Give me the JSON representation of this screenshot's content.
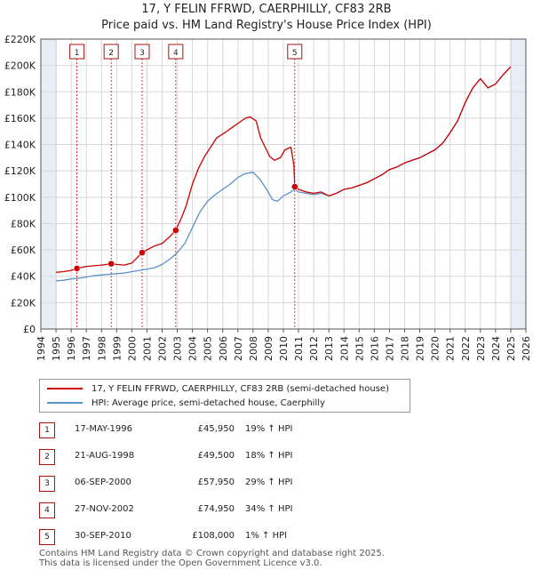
{
  "title_line1": "17, Y FELIN FFRWD, CAERPHILLY, CF83 2RB",
  "title_line2": "Price paid vs. HM Land Registry's House Price Index (HPI)",
  "colors": {
    "property": "#cc0000",
    "hpi": "#5b8fc9",
    "shade": "#e8eef8",
    "marker": "#cc0000"
  },
  "legend": {
    "property": "17, Y FELIN FFRWD, CAERPHILLY, CF83 2RB (semi-detached house)",
    "hpi": "HPI: Average price, semi-detached house, Caerphilly"
  },
  "sales": [
    {
      "num": "1",
      "date": "17-MAY-1996",
      "price": "£45,950",
      "hpi": "19% ↑ HPI"
    },
    {
      "num": "2",
      "date": "21-AUG-1998",
      "price": "£49,500",
      "hpi": "18% ↑ HPI"
    },
    {
      "num": "3",
      "date": "06-SEP-2000",
      "price": "£57,950",
      "hpi": "29% ↑ HPI"
    },
    {
      "num": "4",
      "date": "27-NOV-2002",
      "price": "£74,950",
      "hpi": "34% ↑ HPI"
    },
    {
      "num": "5",
      "date": "30-SEP-2010",
      "price": "£108,000",
      "hpi": "1% ↑ HPI"
    }
  ],
  "footer_line1": "Contains HM Land Registry data © Crown copyright and database right 2025.",
  "footer_line2": "This data is licensed under the Open Government Licence v3.0.",
  "chart_data": {
    "type": "line",
    "title": "17, Y FELIN FFRWD, CAERPHILLY, CF83 2RB",
    "subtitle": "Price paid vs. HM Land Registry's House Price Index (HPI)",
    "xlabel": "",
    "ylabel": "",
    "xlim": [
      1994,
      2026
    ],
    "ylim": [
      0,
      220000
    ],
    "grid": true,
    "legend_position": "bottom",
    "x_ticks": [
      1994,
      1995,
      1996,
      1997,
      1998,
      1999,
      2000,
      2001,
      2002,
      2003,
      2004,
      2005,
      2006,
      2007,
      2008,
      2009,
      2010,
      2011,
      2012,
      2013,
      2014,
      2015,
      2016,
      2017,
      2018,
      2019,
      2020,
      2021,
      2022,
      2023,
      2024,
      2025,
      2026
    ],
    "y_ticks": [
      0,
      20000,
      40000,
      60000,
      80000,
      100000,
      120000,
      140000,
      160000,
      180000,
      200000,
      220000
    ],
    "y_tick_labels": [
      "£0",
      "£20K",
      "£40K",
      "£60K",
      "£80K",
      "£100K",
      "£120K",
      "£140K",
      "£160K",
      "£180K",
      "£200K",
      "£220K"
    ],
    "shaded_ranges": [
      [
        1994,
        1995
      ],
      [
        2025,
        2026
      ]
    ],
    "sale_markers": [
      {
        "label": "1",
        "x": 1996.38,
        "y": 45950
      },
      {
        "label": "2",
        "x": 1998.64,
        "y": 49500
      },
      {
        "label": "3",
        "x": 2000.68,
        "y": 57950
      },
      {
        "label": "4",
        "x": 2002.9,
        "y": 74950
      },
      {
        "label": "5",
        "x": 2010.75,
        "y": 108000
      }
    ],
    "series": [
      {
        "name": "17, Y FELIN FFRWD, CAERPHILLY, CF83 2RB (semi-detached house)",
        "x": [
          1995.0,
          1995.5,
          1996.0,
          1996.38,
          1997.0,
          1997.5,
          1998.0,
          1998.64,
          1999.0,
          1999.5,
          2000.0,
          2000.68,
          2001.0,
          2001.5,
          2002.0,
          2002.5,
          2002.9,
          2003.3,
          2003.6,
          2004.0,
          2004.4,
          2004.8,
          2005.2,
          2005.6,
          2006.0,
          2006.5,
          2007.0,
          2007.5,
          2007.8,
          2008.2,
          2008.5,
          2008.8,
          2009.1,
          2009.4,
          2009.8,
          2010.1,
          2010.5,
          2010.7,
          2010.75,
          2011.0,
          2011.5,
          2012.0,
          2012.5,
          2013.0,
          2013.5,
          2014.0,
          2014.5,
          2015.0,
          2015.5,
          2016.0,
          2016.5,
          2017.0,
          2017.5,
          2018.0,
          2018.5,
          2019.0,
          2019.5,
          2020.0,
          2020.5,
          2021.0,
          2021.5,
          2022.0,
          2022.5,
          2023.0,
          2023.5,
          2024.0,
          2024.5,
          2025.0
        ],
        "y": [
          43000,
          43500,
          44500,
          45950,
          47500,
          48000,
          48500,
          49500,
          49000,
          48500,
          50000,
          57950,
          60000,
          63000,
          65000,
          70000,
          74950,
          85000,
          94000,
          110000,
          122000,
          131000,
          138000,
          145000,
          148000,
          152000,
          156000,
          160000,
          161000,
          158000,
          145000,
          138000,
          131000,
          128000,
          130000,
          136000,
          138000,
          124000,
          108000,
          106000,
          104000,
          103000,
          104000,
          101000,
          103000,
          106000,
          107000,
          109000,
          111000,
          114000,
          117000,
          121000,
          123000,
          126000,
          128000,
          130000,
          133000,
          136000,
          141000,
          149000,
          158000,
          172000,
          183000,
          190000,
          183000,
          186000,
          193000,
          199000
        ]
      },
      {
        "name": "HPI: Average price, semi-detached house, Caerphilly",
        "x": [
          1995.0,
          1995.5,
          1996.0,
          1996.5,
          1997.0,
          1997.5,
          1998.0,
          1998.5,
          1999.0,
          1999.5,
          2000.0,
          2000.5,
          2001.0,
          2001.5,
          2002.0,
          2002.5,
          2003.0,
          2003.5,
          2004.0,
          2004.5,
          2005.0,
          2005.5,
          2006.0,
          2006.5,
          2007.0,
          2007.5,
          2008.0,
          2008.5,
          2009.0,
          2009.3,
          2009.6,
          2010.0,
          2010.5,
          2010.75,
          2011.0,
          2011.5,
          2012.0,
          2012.5,
          2013.0,
          2013.5,
          2014.0,
          2014.5,
          2015.0,
          2015.5,
          2016.0,
          2016.5,
          2017.0,
          2017.5,
          2018.0,
          2018.5,
          2019.0,
          2019.5,
          2020.0,
          2020.5,
          2021.0,
          2021.5,
          2022.0,
          2022.5,
          2023.0,
          2023.5,
          2024.0,
          2024.5,
          2025.0
        ],
        "y": [
          36500,
          37000,
          38000,
          38500,
          39500,
          40500,
          41000,
          41500,
          42000,
          42500,
          43500,
          44500,
          45500,
          46500,
          49000,
          53000,
          58000,
          65000,
          77000,
          89000,
          97000,
          102000,
          106000,
          110000,
          115000,
          118000,
          119000,
          113000,
          104000,
          98000,
          97000,
          101000,
          104000,
          106000,
          104000,
          103000,
          102000,
          103000,
          101000,
          103000,
          106000,
          107000,
          109000,
          111000,
          114000,
          117000,
          121000,
          123000,
          126000,
          128000,
          130000,
          133000,
          136000,
          141000,
          149000,
          158000,
          172000,
          183000,
          190000,
          183000,
          186000,
          193000,
          199000
        ]
      }
    ]
  }
}
